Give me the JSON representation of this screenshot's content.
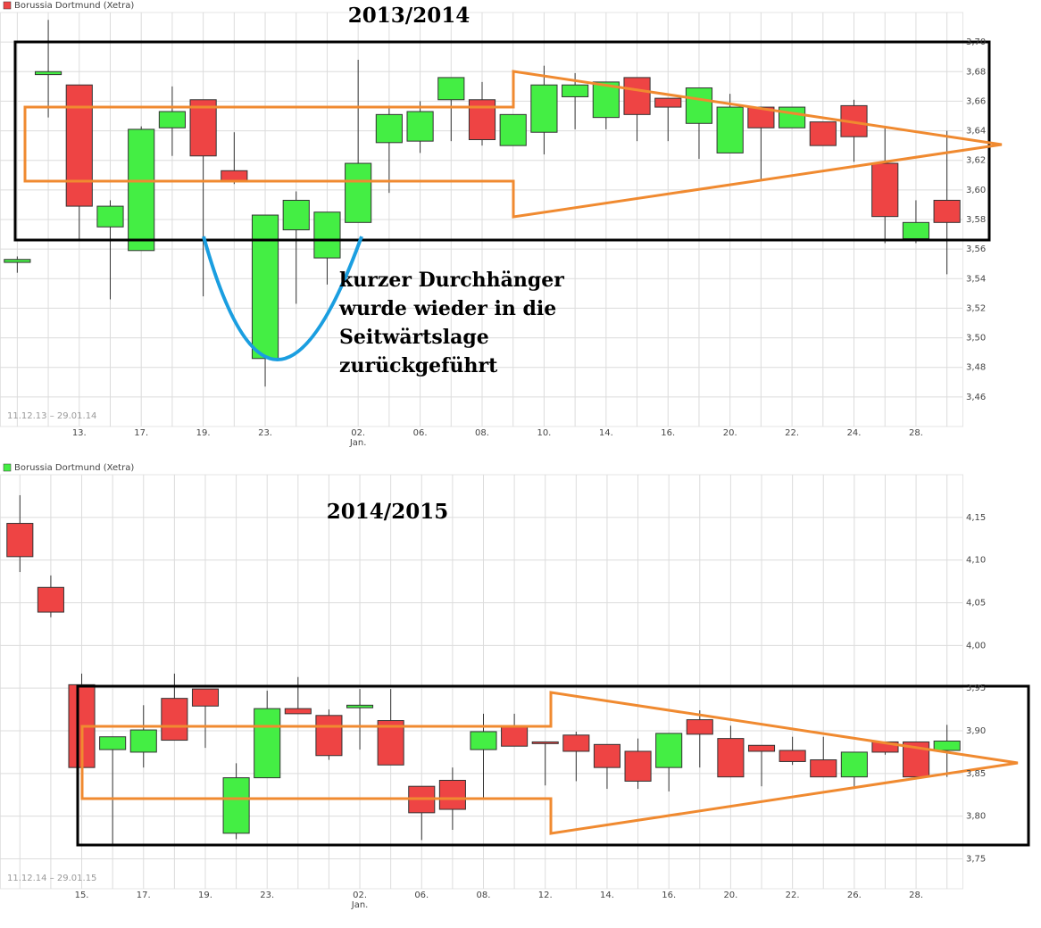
{
  "chart_data": [
    {
      "type": "candlestick",
      "title": "2013/2014",
      "legend": "Borussia Dortmund (Xetra)",
      "legend_color": "#ee4444",
      "period": "11.12.13 – 29.01.14",
      "annotation_lines": [
        "kurzer Durchhänger",
        "wurde wieder in die",
        "Seitwärtslage",
        "zurückgeführt"
      ],
      "up_color": "#44ee44",
      "down_color": "#ee4444",
      "grid": true,
      "categories": [
        null,
        null,
        "13.",
        null,
        "17.",
        null,
        "19.",
        null,
        "23.",
        null,
        null,
        "02.",
        null,
        "06.",
        null,
        "08.",
        null,
        "10.",
        null,
        "14.",
        null,
        "16.",
        null,
        "20.",
        null,
        "22.",
        null,
        "24.",
        null,
        "28.",
        null
      ],
      "category_sublabels": [
        null,
        null,
        null,
        null,
        null,
        null,
        null,
        null,
        null,
        null,
        null,
        "Jan.",
        null,
        null,
        null,
        null,
        null,
        null,
        null,
        null,
        null,
        null,
        null,
        null,
        null,
        null,
        null,
        null,
        null,
        null,
        null
      ],
      "open": [
        3.551,
        3.678,
        3.671,
        3.575,
        3.559,
        3.642,
        3.661,
        3.613,
        3.486,
        3.573,
        3.554,
        3.578,
        3.632,
        3.633,
        3.661,
        3.661,
        3.63,
        3.639,
        3.663,
        3.649,
        3.676,
        3.662,
        3.645,
        3.625,
        3.656,
        3.642,
        3.646,
        3.657,
        3.618,
        3.567,
        3.593
      ],
      "high": [
        3.555,
        3.715,
        3.671,
        3.593,
        3.643,
        3.67,
        3.661,
        3.639,
        3.583,
        3.599,
        3.585,
        3.688,
        3.657,
        3.66,
        3.676,
        3.673,
        3.651,
        3.684,
        3.679,
        3.673,
        3.676,
        3.662,
        3.669,
        3.665,
        3.656,
        3.656,
        3.646,
        3.661,
        3.642,
        3.593,
        3.64
      ],
      "low": [
        3.544,
        3.649,
        3.567,
        3.526,
        3.559,
        3.623,
        3.528,
        3.604,
        3.467,
        3.523,
        3.536,
        3.578,
        3.598,
        3.625,
        3.633,
        3.63,
        3.63,
        3.624,
        3.641,
        3.641,
        3.633,
        3.633,
        3.621,
        3.625,
        3.607,
        3.642,
        3.63,
        3.619,
        3.564,
        3.564,
        3.543
      ],
      "close": [
        3.553,
        3.68,
        3.589,
        3.589,
        3.641,
        3.653,
        3.623,
        3.606,
        3.583,
        3.593,
        3.585,
        3.618,
        3.651,
        3.653,
        3.676,
        3.634,
        3.651,
        3.671,
        3.671,
        3.673,
        3.651,
        3.656,
        3.669,
        3.656,
        3.642,
        3.656,
        3.63,
        3.636,
        3.582,
        3.578,
        3.578
      ],
      "ylim": [
        3.44,
        3.72
      ],
      "yticks": [
        {
          "value": 3.46,
          "label": "3,46"
        },
        {
          "value": 3.48,
          "label": "3,48"
        },
        {
          "value": 3.5,
          "label": "3,50"
        },
        {
          "value": 3.52,
          "label": "3,52"
        },
        {
          "value": 3.54,
          "label": "3,54"
        },
        {
          "value": 3.56,
          "label": "3,56"
        },
        {
          "value": 3.58,
          "label": "3,58"
        },
        {
          "value": 3.6,
          "label": "3,60"
        },
        {
          "value": 3.62,
          "label": "3,62"
        },
        {
          "value": 3.64,
          "label": "3,64"
        },
        {
          "value": 3.66,
          "label": "3,66"
        },
        {
          "value": 3.68,
          "label": "3,68"
        },
        {
          "value": 3.7,
          "label": "3,70"
        }
      ]
    },
    {
      "type": "candlestick",
      "title": "2014/2015",
      "legend": "Borussia Dortmund (Xetra)",
      "legend_color": "#44ee44",
      "period": "11.12.14 – 29.01.15",
      "up_color": "#44ee44",
      "down_color": "#ee4444",
      "grid": true,
      "categories": [
        null,
        null,
        "15.",
        null,
        "17.",
        null,
        "19.",
        null,
        "23.",
        null,
        null,
        "02.",
        null,
        "06.",
        null,
        "08.",
        null,
        "12.",
        null,
        "14.",
        null,
        "16.",
        null,
        "20.",
        null,
        "22.",
        null,
        "26.",
        null,
        "28.",
        null
      ],
      "category_sublabels": [
        null,
        null,
        null,
        null,
        null,
        null,
        null,
        null,
        null,
        null,
        null,
        "Jan.",
        null,
        null,
        null,
        null,
        null,
        null,
        null,
        null,
        null,
        null,
        null,
        null,
        null,
        null,
        null,
        null,
        null,
        null,
        null
      ],
      "open": [
        4.143,
        4.068,
        3.954,
        3.878,
        3.875,
        3.938,
        3.949,
        3.78,
        3.845,
        3.926,
        3.918,
        3.927,
        3.912,
        3.835,
        3.842,
        3.878,
        3.906,
        3.887,
        3.895,
        3.884,
        3.876,
        3.857,
        3.913,
        3.891,
        3.883,
        3.877,
        3.866,
        3.846,
        3.887,
        3.887,
        3.877
      ],
      "high": [
        4.176,
        4.082,
        3.967,
        3.893,
        3.93,
        3.967,
        3.949,
        3.862,
        3.947,
        3.963,
        3.925,
        3.949,
        3.949,
        3.835,
        3.857,
        3.92,
        3.92,
        3.887,
        3.899,
        3.884,
        3.891,
        3.897,
        3.924,
        3.906,
        3.883,
        3.893,
        3.893,
        3.875,
        3.887,
        3.887,
        3.907
      ],
      "low": [
        4.086,
        4.033,
        3.857,
        3.765,
        3.857,
        3.889,
        3.88,
        3.773,
        3.845,
        3.92,
        3.866,
        3.878,
        3.86,
        3.772,
        3.784,
        3.82,
        3.882,
        3.836,
        3.841,
        3.832,
        3.832,
        3.829,
        3.857,
        3.846,
        3.835,
        3.86,
        3.846,
        3.832,
        3.872,
        3.846,
        3.846
      ],
      "close": [
        4.104,
        4.039,
        3.857,
        3.893,
        3.901,
        3.889,
        3.929,
        3.845,
        3.926,
        3.92,
        3.871,
        3.93,
        3.86,
        3.804,
        3.808,
        3.899,
        3.882,
        3.885,
        3.876,
        3.857,
        3.841,
        3.897,
        3.896,
        3.846,
        3.876,
        3.864,
        3.846,
        3.875,
        3.875,
        3.846,
        3.888
      ],
      "ylim": [
        3.715,
        4.2
      ],
      "yticks": [
        {
          "value": 3.75,
          "label": "3,75"
        },
        {
          "value": 3.8,
          "label": "3,80"
        },
        {
          "value": 3.85,
          "label": "3,85"
        },
        {
          "value": 3.9,
          "label": "3,90"
        },
        {
          "value": 3.95,
          "label": "3,95"
        },
        {
          "value": 4.0,
          "label": "4,00"
        },
        {
          "value": 4.05,
          "label": "4,05"
        },
        {
          "value": 4.1,
          "label": "4,10"
        },
        {
          "value": 4.15,
          "label": "4,15"
        }
      ]
    }
  ]
}
